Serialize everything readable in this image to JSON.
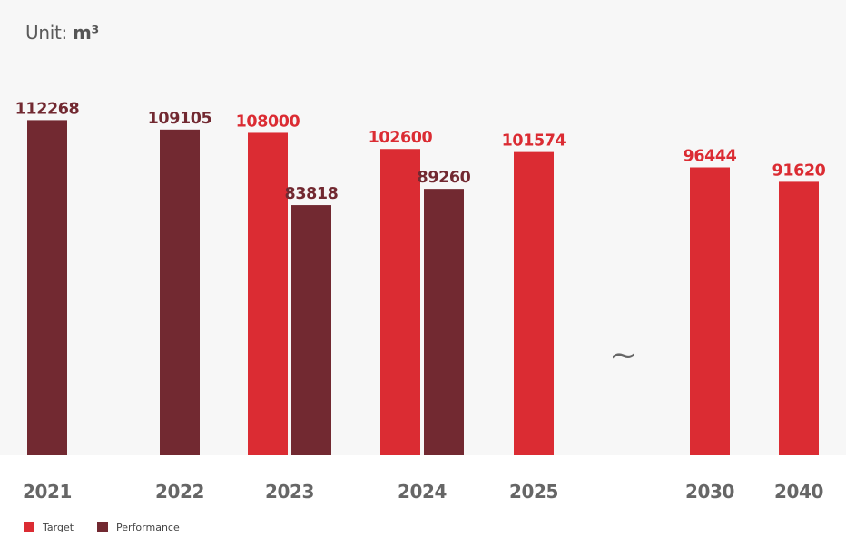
{
  "unit": {
    "prefix": "Unit: ",
    "unit": "m³"
  },
  "legend": [
    {
      "label": "Target",
      "color": "#db2c33"
    },
    {
      "label": "Performance",
      "color": "#722931"
    }
  ],
  "axis_break_symbol": "~",
  "chart_data": {
    "type": "bar",
    "title": "",
    "xlabel": "",
    "ylabel": "Unit: m³",
    "ylim": [
      0,
      113000
    ],
    "categories": [
      "2021",
      "2022",
      "2023",
      "2024",
      "2025",
      "2030",
      "2040"
    ],
    "series": [
      {
        "name": "Target",
        "color": "#db2c33",
        "values": [
          null,
          null,
          108000,
          102600,
          101574,
          96444,
          91620
        ]
      },
      {
        "name": "Performance",
        "color": "#722931",
        "values": [
          112268,
          109105,
          83818,
          89260,
          null,
          null,
          null
        ]
      }
    ],
    "axis_break_between": [
      "2025",
      "2030"
    ],
    "grid": false,
    "legend_position": "bottom-left"
  }
}
